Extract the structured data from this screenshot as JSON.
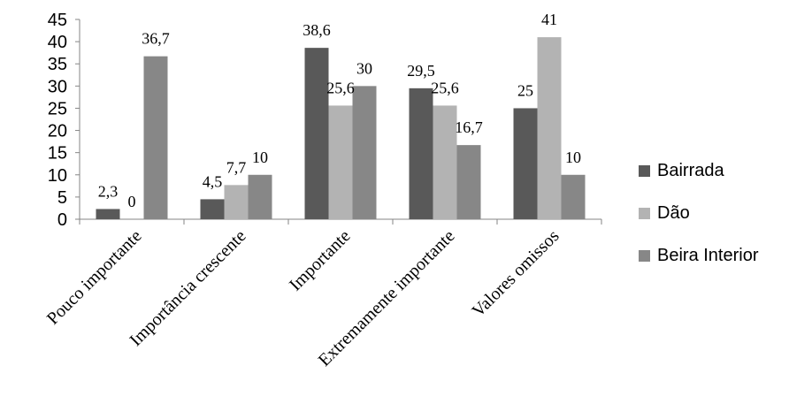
{
  "chart_data": {
    "type": "bar",
    "categories": [
      "Pouco importante",
      "Importância crescente",
      "Importante",
      "Extremamente importante",
      "Valores omissos"
    ],
    "series": [
      {
        "name": "Bairrada",
        "color": "#595959",
        "values": [
          2.3,
          4.5,
          38.6,
          29.5,
          25
        ],
        "labels": [
          "2,3",
          "4,5",
          "38,6",
          "29,5",
          "25"
        ]
      },
      {
        "name": "Dão",
        "color": "#b3b3b3",
        "values": [
          0,
          7.7,
          25.6,
          25.6,
          41
        ],
        "labels": [
          "0",
          "7,7",
          "25,6",
          "25,6",
          "41"
        ]
      },
      {
        "name": "Beira Interior",
        "color": "#878787",
        "values": [
          36.7,
          10,
          30,
          16.7,
          10
        ],
        "labels": [
          "36,7",
          "10",
          "30",
          "16,7",
          "10"
        ]
      }
    ],
    "ylim": [
      0,
      45
    ],
    "yticks": [
      "0",
      "5",
      "10",
      "15",
      "20",
      "25",
      "30",
      "35",
      "40",
      "45"
    ],
    "legend_position": "right",
    "grid": false
  }
}
